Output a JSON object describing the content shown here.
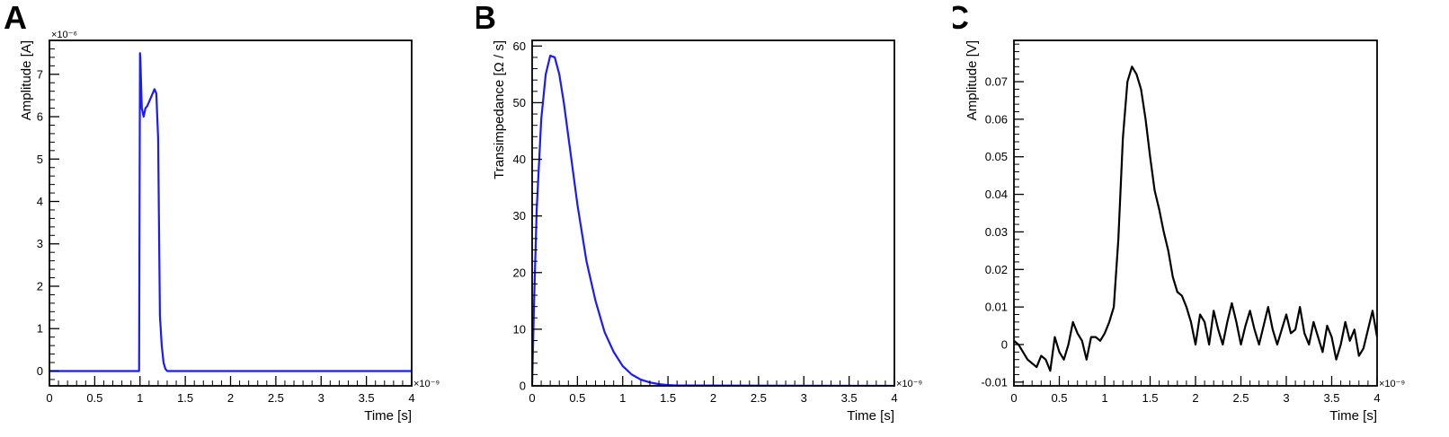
{
  "chart_data": [
    {
      "panel": "A",
      "type": "line",
      "xlabel": "Time [s]",
      "ylabel": "Amplitude [A]",
      "x_exponent": "×10⁻⁹",
      "y_exponent": "×10⁻⁶",
      "xlim": [
        0,
        4
      ],
      "ylim": [
        -0.35,
        7.8
      ],
      "x_ticks": [
        "0",
        "0.5",
        "1",
        "1.5",
        "2",
        "2.5",
        "3",
        "3.5",
        "4"
      ],
      "y_ticks": [
        "0",
        "1",
        "2",
        "3",
        "4",
        "5",
        "6",
        "7"
      ],
      "line_color": "#1a1aff",
      "series": [
        {
          "x": [
            0,
            0.99,
            1.0,
            1.005,
            1.02,
            1.04,
            1.06,
            1.08,
            1.1,
            1.12,
            1.14,
            1.16,
            1.18,
            1.2,
            1.22,
            1.24,
            1.26,
            1.28,
            1.3,
            4.0
          ],
          "y": [
            0,
            0,
            7.5,
            7.3,
            6.2,
            6.0,
            6.2,
            6.25,
            6.35,
            6.45,
            6.55,
            6.65,
            6.55,
            5.5,
            1.3,
            0.6,
            0.2,
            0.05,
            0,
            0
          ]
        }
      ]
    },
    {
      "panel": "B",
      "type": "line",
      "xlabel": "Time [s]",
      "ylabel": "Transimpedance [Ω / s]",
      "x_exponent": "×10⁻⁹",
      "xlim": [
        0,
        4
      ],
      "ylim": [
        0,
        61
      ],
      "x_ticks": [
        "0",
        "0.5",
        "1",
        "1.5",
        "2",
        "2.5",
        "3",
        "3.5",
        "4"
      ],
      "y_ticks": [
        "0",
        "10",
        "20",
        "30",
        "40",
        "50",
        "60"
      ],
      "line_color": "#1a1aff",
      "series": [
        {
          "x": [
            0,
            0.02,
            0.05,
            0.1,
            0.15,
            0.2,
            0.25,
            0.3,
            0.35,
            0.4,
            0.45,
            0.5,
            0.6,
            0.7,
            0.8,
            0.9,
            1.0,
            1.1,
            1.2,
            1.3,
            1.4,
            1.5,
            1.6,
            4.0
          ],
          "y": [
            0,
            14,
            31,
            47,
            55,
            58.3,
            58,
            55,
            50,
            44,
            38,
            32,
            22,
            15,
            9.5,
            6,
            3.5,
            2,
            1.1,
            0.6,
            0.3,
            0.15,
            0.07,
            0
          ]
        }
      ]
    },
    {
      "panel": "C",
      "type": "line",
      "xlabel": "Time [s]",
      "ylabel": "Amplitude [V]",
      "x_exponent": "×10⁻⁹",
      "xlim": [
        0,
        4
      ],
      "ylim": [
        -0.011,
        0.081
      ],
      "x_ticks": [
        "0",
        "0.5",
        "1",
        "1.5",
        "2",
        "2.5",
        "3",
        "3.5",
        "4"
      ],
      "y_ticks": [
        "-0.01",
        "0",
        "0.01",
        "0.02",
        "0.03",
        "0.04",
        "0.05",
        "0.06",
        "0.07"
      ],
      "line_color": "#000000",
      "series": [
        {
          "x": [
            0,
            0.05,
            0.1,
            0.15,
            0.2,
            0.25,
            0.3,
            0.35,
            0.4,
            0.45,
            0.5,
            0.55,
            0.6,
            0.65,
            0.7,
            0.75,
            0.8,
            0.85,
            0.9,
            0.95,
            1.0,
            1.05,
            1.1,
            1.15,
            1.2,
            1.25,
            1.3,
            1.35,
            1.4,
            1.45,
            1.5,
            1.55,
            1.6,
            1.65,
            1.7,
            1.75,
            1.8,
            1.85,
            1.9,
            1.95,
            2.0,
            2.05,
            2.1,
            2.15,
            2.2,
            2.25,
            2.3,
            2.35,
            2.4,
            2.45,
            2.5,
            2.55,
            2.6,
            2.65,
            2.7,
            2.75,
            2.8,
            2.85,
            2.9,
            2.95,
            3.0,
            3.05,
            3.1,
            3.15,
            3.2,
            3.25,
            3.3,
            3.35,
            3.4,
            3.45,
            3.5,
            3.55,
            3.6,
            3.65,
            3.7,
            3.75,
            3.8,
            3.85,
            3.9,
            3.95,
            4.0
          ],
          "y": [
            0.001,
            0.0,
            -0.002,
            -0.004,
            -0.005,
            -0.006,
            -0.003,
            -0.004,
            -0.007,
            0.002,
            -0.002,
            -0.004,
            0.0,
            0.006,
            0.003,
            0.001,
            -0.004,
            0.002,
            0.002,
            0.001,
            0.003,
            0.006,
            0.01,
            0.028,
            0.055,
            0.07,
            0.074,
            0.072,
            0.068,
            0.06,
            0.05,
            0.041,
            0.036,
            0.03,
            0.025,
            0.018,
            0.014,
            0.013,
            0.01,
            0.006,
            0.0,
            0.008,
            0.006,
            0.0,
            0.009,
            0.004,
            0.0,
            0.006,
            0.011,
            0.006,
            0.0,
            0.005,
            0.009,
            0.004,
            0.0,
            0.005,
            0.01,
            0.004,
            0.0,
            0.004,
            0.008,
            0.003,
            0.004,
            0.01,
            0.003,
            0.0,
            0.006,
            0.002,
            -0.002,
            0.005,
            0.002,
            -0.004,
            0.0,
            0.006,
            0.001,
            0.004,
            -0.003,
            -0.001,
            0.004,
            0.009,
            0.002
          ]
        }
      ]
    }
  ]
}
